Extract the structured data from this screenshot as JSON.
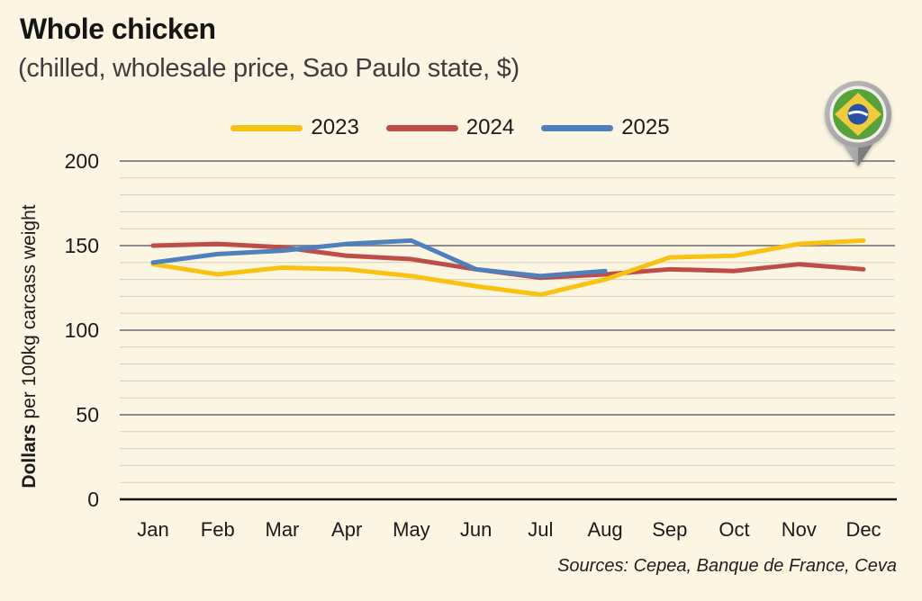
{
  "header": {
    "title": "Whole chicken",
    "subtitle": "(chilled, wholesale price, Sao Paulo state, $)"
  },
  "footer": {
    "sources": "Sources: Cepea, Banque de France, Ceva"
  },
  "icons": {
    "location_pin": "brazil-flag-map-pin"
  },
  "colors": {
    "background": "#FBF5E1",
    "axis_zero_line": "#111111",
    "grid_major": "#8C8C8C",
    "grid_minor": "#D6D0BD",
    "pin_gray": "#A9A9A9",
    "flag_green": "#58A23B",
    "flag_yellow": "#F0CB3C",
    "flag_blue": "#2853A4"
  },
  "chart_data": {
    "type": "line",
    "title": "Whole chicken",
    "subtitle": "(chilled, wholesale price, Sao Paulo state, $)",
    "ylabel_bold": "Dollars",
    "ylabel_rest": " per 100kg carcass weight",
    "categories": [
      "Jan",
      "Feb",
      "Mar",
      "Apr",
      "May",
      "Jun",
      "Jul",
      "Aug",
      "Sep",
      "Oct",
      "Nov",
      "Dec"
    ],
    "ylim": [
      0,
      200
    ],
    "yticks": [
      0,
      50,
      100,
      150,
      200
    ],
    "grid": "horizontal only, minor step 10, major step 50, zero baseline black",
    "legend_position": "top-center",
    "series": [
      {
        "name": "2023",
        "color": "#F9C213",
        "z": 1,
        "values": [
          139,
          133,
          137,
          136,
          132,
          126,
          121,
          130,
          143,
          144,
          151,
          153
        ]
      },
      {
        "name": "2024",
        "color": "#BE4D4A",
        "z": 0,
        "values": [
          150,
          151,
          149,
          144,
          142,
          136,
          131,
          133,
          136,
          135,
          139,
          136
        ]
      },
      {
        "name": "2025",
        "color": "#4E80BE",
        "z": 2,
        "values": [
          140,
          145,
          147,
          151,
          153,
          136,
          132,
          135
        ]
      }
    ]
  }
}
